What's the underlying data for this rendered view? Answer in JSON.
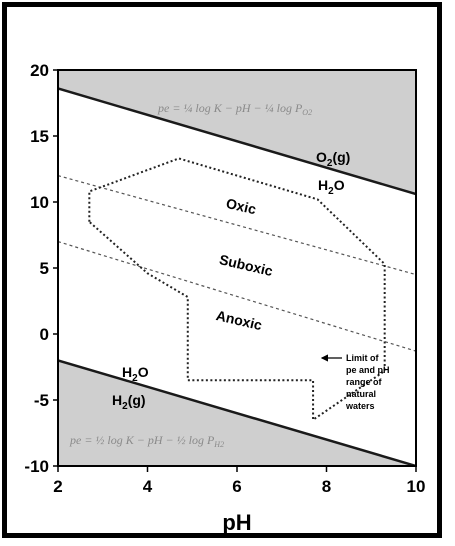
{
  "chart_data": {
    "type": "line",
    "xlabel": "pH",
    "ylabel": "",
    "xlim": [
      2,
      10
    ],
    "ylim": [
      -10,
      20
    ],
    "x_ticks": [
      "2",
      "4",
      "6",
      "8",
      "10"
    ],
    "y_ticks": [
      "20",
      "15",
      "10",
      "5",
      "0",
      "-5",
      "-10"
    ],
    "grid": false,
    "boundaries": [
      {
        "name": "O2-H2O",
        "x": [
          2,
          10
        ],
        "y": [
          18.6,
          10.6
        ]
      },
      {
        "name": "H2-H2O",
        "x": [
          2,
          10
        ],
        "y": [
          -2,
          -10
        ]
      }
    ],
    "dashed_lines": [
      {
        "name": "oxic-suboxic",
        "x": [
          2,
          10
        ],
        "y": [
          12,
          4.5
        ]
      },
      {
        "name": "suboxic-anoxic",
        "x": [
          2,
          10
        ],
        "y": [
          7,
          -1.3
        ]
      }
    ],
    "natural_waters_polygon": {
      "x": [
        2.7,
        2.7,
        4.7,
        7.8,
        9.3,
        9.3,
        7.7,
        7.7,
        4.9,
        4.9,
        4.0,
        2.7
      ],
      "y": [
        8.5,
        10.8,
        13.3,
        10.2,
        5.3,
        -2.8,
        -6.5,
        -3.5,
        -3.5,
        2.8,
        4.6,
        8.5
      ]
    },
    "annotations": {
      "upper_equation": "pe = ¼ log K − pH − ¼ log P",
      "upper_equation_sub": "O2",
      "lower_equation": "pe = ½ log K − pH − ½ log P",
      "lower_equation_sub": "H2",
      "o2_gas": "O",
      "o2_gas_sub": "2",
      "o2_gas_suffix": "(g)",
      "h2o_top_main": "H",
      "h2o_top_sub": "2",
      "h2o_top_suffix": "O",
      "h2o_bottom_main": "H",
      "h2o_bottom_sub": "2",
      "h2o_bottom_suffix": "O",
      "h2_gas": "H",
      "h2_gas_sub": "2",
      "h2_gas_suffix": "(g)",
      "oxic": "Oxic",
      "suboxic": "Suboxic",
      "anoxic": "Anoxic",
      "limit_note": [
        "Limit of",
        "pe and pH",
        "range of",
        "natural",
        "waters"
      ]
    }
  },
  "colors": {
    "shaded_region": "#cfcfcf",
    "line": "#1a1a1a",
    "dashed": "#555555"
  }
}
